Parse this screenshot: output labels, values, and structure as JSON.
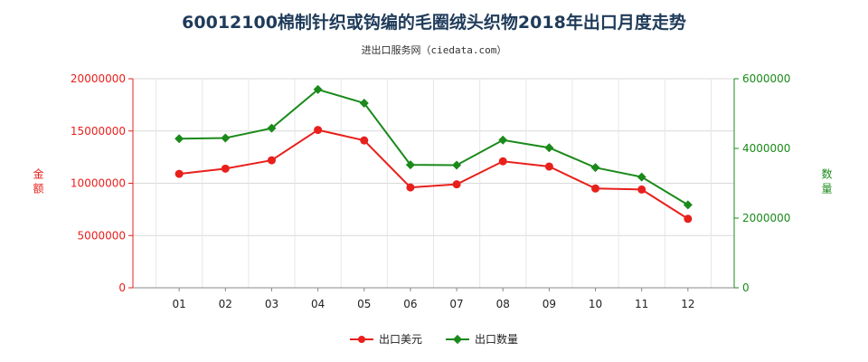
{
  "chart_data": {
    "type": "line",
    "title": "60012100棉制针织或钩编的毛圈绒头织物2018年出口月度走势",
    "subtitle": "进出口服务网（ciedata.com）",
    "categories": [
      "01",
      "02",
      "03",
      "04",
      "05",
      "06",
      "07",
      "08",
      "09",
      "10",
      "11",
      "12"
    ],
    "y_left": {
      "label": "金额",
      "ylim": [
        0,
        20000000
      ],
      "ticks": [
        "0",
        "5000000",
        "10000000",
        "15000000",
        "20000000"
      ],
      "color": "#e8201c"
    },
    "y_right": {
      "label": "数量",
      "ylim": [
        0,
        6000000
      ],
      "ticks": [
        "0",
        "2000000",
        "4000000",
        "6000000"
      ],
      "color": "#1a8a1a"
    },
    "series": [
      {
        "name": "出口美元",
        "axis": "left",
        "color": "#e8201c",
        "marker": "circle",
        "values": [
          10900000,
          11400000,
          12200000,
          15100000,
          14100000,
          9600000,
          9900000,
          12100000,
          11600000,
          9500000,
          9400000,
          6600000
        ]
      },
      {
        "name": "出口数量",
        "axis": "right",
        "color": "#1a8a1a",
        "marker": "diamond",
        "values": [
          4280000,
          4300000,
          4580000,
          5690000,
          5300000,
          3530000,
          3520000,
          4240000,
          4020000,
          3450000,
          3180000,
          2380000
        ]
      }
    ],
    "grid": true,
    "legend_position": "bottom"
  }
}
